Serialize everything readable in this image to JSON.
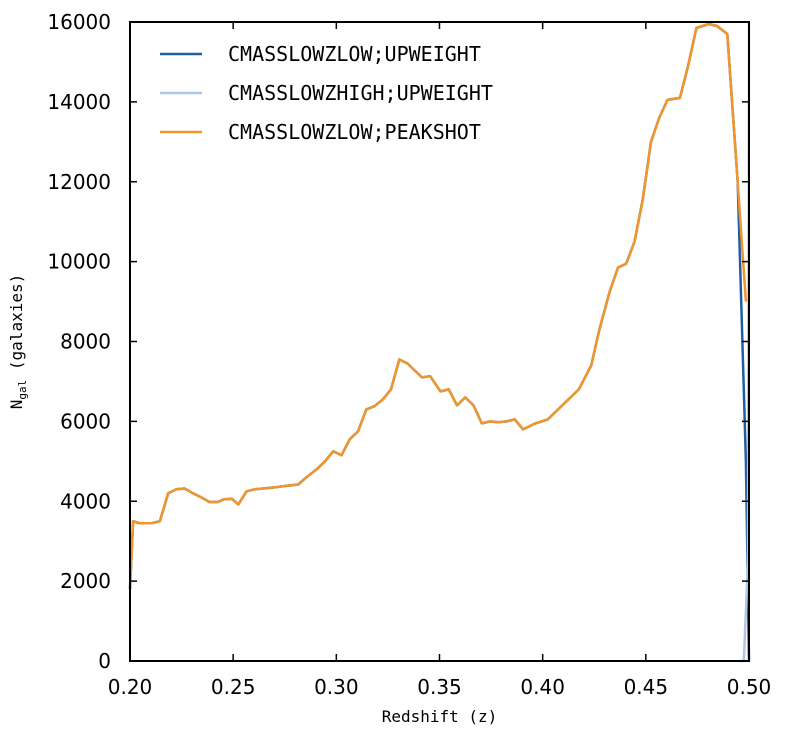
{
  "chart_data": {
    "type": "line",
    "xlabel": "Redshift (z)",
    "ylabel": {
      "base": "N",
      "sub": "gal",
      "suffix": " (galaxies)"
    },
    "xlim": [
      0.2,
      0.5
    ],
    "ylim": [
      0,
      16000
    ],
    "xticks": [
      "0.20",
      "0.25",
      "0.30",
      "0.35",
      "0.40",
      "0.45",
      "0.50"
    ],
    "yticks": [
      "0",
      "2000",
      "4000",
      "6000",
      "8000",
      "10000",
      "12000",
      "14000",
      "16000"
    ],
    "grid": false,
    "legend_position": "top-left",
    "series": [
      {
        "name": "CMASSLOWZLOW;UPWEIGHT",
        "color": "#1f5fa0",
        "x": [
          0.2,
          0.2015,
          0.2045,
          0.2075,
          0.2105,
          0.2145,
          0.2185,
          0.2225,
          0.2265,
          0.2305,
          0.2345,
          0.2385,
          0.2425,
          0.2455,
          0.2495,
          0.2525,
          0.2565,
          0.2605,
          0.2645,
          0.2705,
          0.2745,
          0.2785,
          0.2815,
          0.2855,
          0.2905,
          0.2945,
          0.2985,
          0.3025,
          0.3065,
          0.3105,
          0.3145,
          0.3185,
          0.3225,
          0.3265,
          0.3305,
          0.3345,
          0.3365,
          0.3415,
          0.3455,
          0.3505,
          0.3545,
          0.3585,
          0.3625,
          0.3665,
          0.3705,
          0.3745,
          0.3785,
          0.3825,
          0.3865,
          0.3905,
          0.3965,
          0.4025,
          0.4075,
          0.4115,
          0.4175,
          0.4235,
          0.4275,
          0.4325,
          0.4365,
          0.4405,
          0.4445,
          0.4485,
          0.4525,
          0.4565,
          0.4605,
          0.4665,
          0.4705,
          0.4745,
          0.4805,
          0.4845,
          0.4895,
          0.4945,
          0.4985,
          0.5
        ],
        "y": [
          1800,
          3500,
          3450,
          3450,
          3450,
          3500,
          4200,
          4300,
          4320,
          4200,
          4100,
          3980,
          3980,
          4050,
          4060,
          3920,
          4250,
          4300,
          4320,
          4350,
          4380,
          4400,
          4420,
          4600,
          4800,
          5000,
          5250,
          5150,
          5550,
          5750,
          6300,
          6380,
          6550,
          6800,
          7550,
          7450,
          7350,
          7100,
          7130,
          6750,
          6800,
          6400,
          6600,
          6400,
          5950,
          6000,
          5980,
          6000,
          6050,
          5800,
          5950,
          6050,
          6300,
          6500,
          6800,
          7400,
          8300,
          9250,
          9850,
          9950,
          10500,
          11550,
          13000,
          13600,
          14050,
          14100,
          14900,
          15850,
          15950,
          15900,
          15700,
          12000,
          5000,
          0
        ]
      },
      {
        "name": "CMASSLOWZHIGH;UPWEIGHT",
        "color": "#aec7e8",
        "x": [
          0.495,
          0.4975,
          0.4995,
          0.5
        ],
        "y": [
          0,
          0,
          2500,
          16000
        ]
      },
      {
        "name": "CMASSLOWZLOW;PEAKSHOT",
        "color": "#f0962a",
        "x": [
          0.2,
          0.2015,
          0.2045,
          0.2075,
          0.2105,
          0.2145,
          0.2185,
          0.2225,
          0.2265,
          0.2305,
          0.2345,
          0.2385,
          0.2425,
          0.2455,
          0.2495,
          0.2525,
          0.2565,
          0.2605,
          0.2645,
          0.2705,
          0.2745,
          0.2785,
          0.2815,
          0.2855,
          0.2905,
          0.2945,
          0.2985,
          0.3025,
          0.3065,
          0.3105,
          0.3145,
          0.3185,
          0.3225,
          0.3265,
          0.3305,
          0.3345,
          0.3365,
          0.3415,
          0.3455,
          0.3505,
          0.3545,
          0.3585,
          0.3625,
          0.3665,
          0.3705,
          0.3745,
          0.3785,
          0.3825,
          0.3865,
          0.3905,
          0.3965,
          0.4025,
          0.4075,
          0.4115,
          0.4175,
          0.4235,
          0.4275,
          0.4325,
          0.4365,
          0.4405,
          0.4445,
          0.4485,
          0.4525,
          0.4565,
          0.4605,
          0.4665,
          0.4705,
          0.4745,
          0.4805,
          0.4845,
          0.4895,
          0.4945,
          0.4985
        ],
        "y": [
          1800,
          3500,
          3450,
          3450,
          3450,
          3500,
          4200,
          4300,
          4320,
          4200,
          4100,
          3980,
          3980,
          4050,
          4060,
          3920,
          4250,
          4300,
          4320,
          4350,
          4380,
          4400,
          4420,
          4600,
          4800,
          5000,
          5250,
          5150,
          5550,
          5750,
          6300,
          6380,
          6550,
          6800,
          7550,
          7450,
          7350,
          7100,
          7130,
          6750,
          6800,
          6400,
          6600,
          6400,
          5950,
          6000,
          5980,
          6000,
          6050,
          5800,
          5950,
          6050,
          6300,
          6500,
          6800,
          7400,
          8300,
          9250,
          9850,
          9950,
          10500,
          11550,
          13000,
          13600,
          14050,
          14100,
          14900,
          15850,
          15950,
          15900,
          15700,
          12000,
          9000
        ]
      }
    ]
  }
}
